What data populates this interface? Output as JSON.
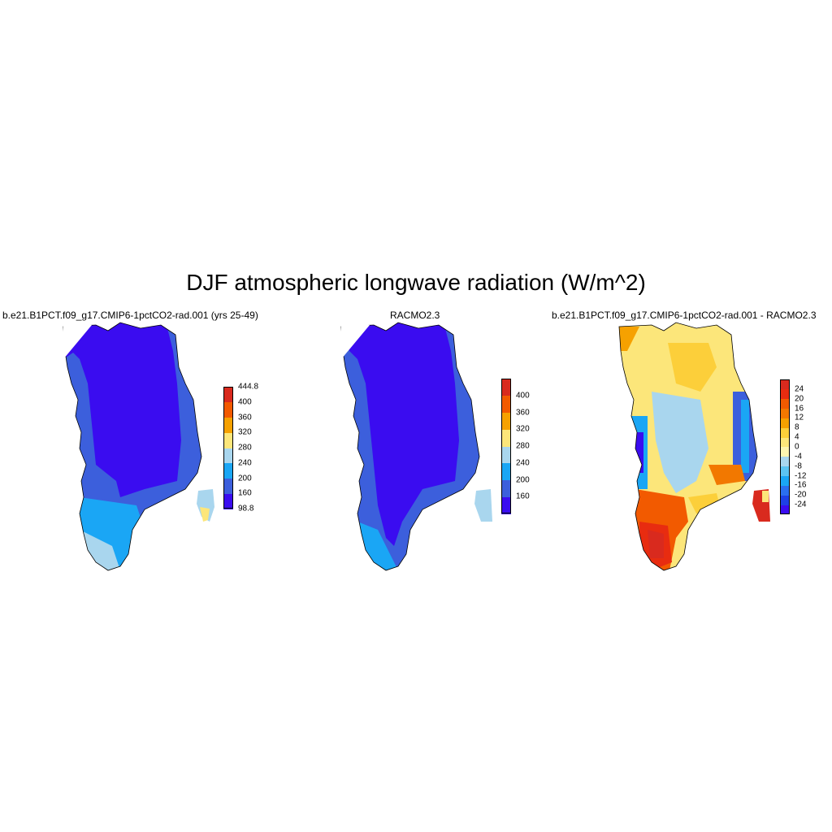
{
  "figure": {
    "title": "DJF atmospheric longwave radiation (W/m^2)"
  },
  "panels": [
    {
      "title": "b.e21.B1PCT.f09_g17.CMIP6-1pctCO2-rad.001 (yrs 25-49)",
      "colorbar": {
        "colors": [
          "#3a0cf0",
          "#3c5fdc",
          "#1aa6f5",
          "#a9d6ee",
          "#fce67a",
          "#f6a100",
          "#f25a00",
          "#d92a1e"
        ],
        "labels": [
          "98.8",
          "160",
          "200",
          "240",
          "280",
          "320",
          "360",
          "400",
          "444.8"
        ]
      }
    },
    {
      "title": "RACMO2.3",
      "colorbar": {
        "colors": [
          "#3a0cf0",
          "#3c5fdc",
          "#1aa6f5",
          "#a9d6ee",
          "#fce67a",
          "#f6a100",
          "#f25a00",
          "#d92a1e"
        ],
        "labels": [
          "160",
          "200",
          "240",
          "280",
          "320",
          "360",
          "400"
        ]
      }
    },
    {
      "title": "b.e21.B1PCT.f09_g17.CMIP6-1pctCO2-rad.001 - RACMO2.3",
      "colorbar": {
        "colors": [
          "#3a0cf0",
          "#1e40e6",
          "#2a6ff0",
          "#1aa6f5",
          "#5cc4f2",
          "#a9d6ee",
          "#fdf5b0",
          "#fce67a",
          "#fccf3a",
          "#f6a100",
          "#f27800",
          "#f25a00",
          "#e82c10",
          "#d92a1e"
        ],
        "labels": [
          "-24",
          "-20",
          "-16",
          "-12",
          "-8",
          "-4",
          "0",
          "4",
          "8",
          "12",
          "16",
          "20",
          "24"
        ]
      }
    }
  ]
}
